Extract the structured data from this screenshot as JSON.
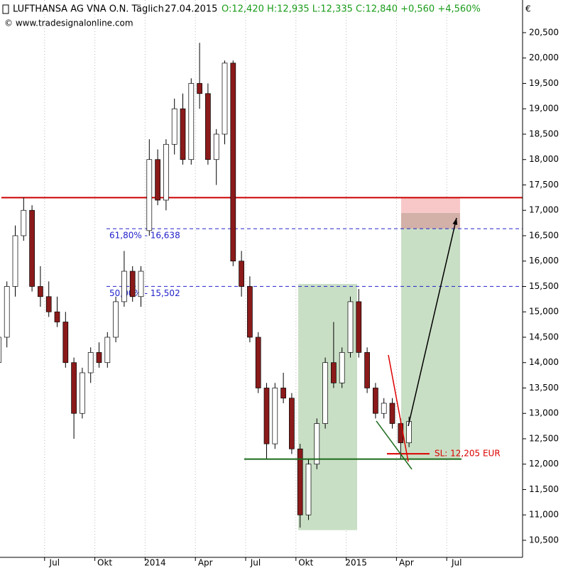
{
  "chart_data": {
    "type": "candlestick",
    "title": "LUFTHANSA AG VNA O.N. Täglich",
    "date": "27.04.2015",
    "quote": "O:12,420 H:12,935 L:12,335 C:12,840 +0,560 +4,560%",
    "source": "© www.tradesignalonline.com",
    "currency": "€",
    "categories": [
      null,
      null,
      null,
      null,
      null,
      null,
      "Jul",
      null,
      null,
      null,
      null,
      null,
      "Okt",
      null,
      null,
      null,
      null,
      null,
      "2014",
      null,
      null,
      null,
      null,
      null,
      "Apr",
      null,
      null,
      null,
      null,
      null,
      "Jul",
      null,
      null,
      null,
      null,
      null,
      "Okt",
      null,
      null,
      null,
      null,
      null,
      "2015",
      null,
      null,
      null,
      null,
      null,
      "Apr",
      null,
      null,
      null,
      null,
      null,
      "Jul",
      null,
      null,
      null,
      null,
      null,
      null,
      null,
      null
    ],
    "open": [
      14.0,
      14.5,
      15.5,
      16.5,
      17.0,
      15.5,
      15.3,
      15.0,
      14.8,
      14.0,
      13.0,
      13.8,
      14.2,
      14.0,
      14.5,
      15.2,
      15.8,
      15.3,
      16.6,
      18.0,
      17.2,
      18.3,
      19.0,
      18.0,
      19.5,
      19.3,
      18.0,
      18.5,
      19.9,
      16.0,
      15.5,
      14.5,
      13.5,
      12.4,
      13.5,
      13.3,
      12.3,
      11.0,
      12.0,
      12.8,
      14.0,
      13.6,
      14.2,
      15.2,
      14.2,
      13.5,
      13.0,
      13.2,
      12.8,
      12.42,
      null,
      null,
      null,
      null,
      null,
      null,
      null,
      null,
      null,
      null,
      null,
      null,
      null
    ],
    "high": [
      14.6,
      15.6,
      16.7,
      17.25,
      17.1,
      15.9,
      15.6,
      15.3,
      15.0,
      14.1,
      13.9,
      14.3,
      14.4,
      14.6,
      15.3,
      16.2,
      15.9,
      15.9,
      18.4,
      18.2,
      18.4,
      19.2,
      19.3,
      19.6,
      20.3,
      19.5,
      18.6,
      19.95,
      19.95,
      16.2,
      15.7,
      14.6,
      13.6,
      13.6,
      13.8,
      13.4,
      12.4,
      12.1,
      12.9,
      14.1,
      14.8,
      14.3,
      15.3,
      15.45,
      14.3,
      13.6,
      13.3,
      13.3,
      12.9,
      12.935,
      null,
      null,
      null,
      null,
      null,
      null,
      null,
      null,
      null,
      null,
      null,
      null,
      null
    ],
    "low": [
      13.8,
      14.3,
      15.3,
      16.4,
      15.4,
      15.1,
      14.9,
      14.7,
      13.9,
      12.5,
      12.9,
      13.6,
      13.9,
      13.9,
      14.4,
      15.1,
      15.2,
      15.1,
      16.5,
      17.1,
      17.0,
      18.1,
      17.9,
      17.9,
      19.0,
      17.9,
      17.5,
      18.3,
      15.9,
      15.3,
      14.4,
      13.4,
      12.1,
      12.3,
      13.2,
      12.2,
      10.75,
      10.9,
      11.9,
      12.7,
      13.5,
      13.5,
      14.1,
      14.1,
      13.4,
      12.9,
      12.9,
      12.7,
      12.1,
      12.335,
      null,
      null,
      null,
      null,
      null,
      null,
      null,
      null,
      null,
      null,
      null,
      null,
      null
    ],
    "close": [
      14.5,
      15.5,
      16.5,
      17.0,
      15.5,
      15.3,
      15.0,
      14.8,
      14.0,
      13.0,
      13.8,
      14.2,
      14.0,
      14.5,
      15.2,
      15.8,
      15.3,
      15.8,
      18.0,
      17.2,
      18.3,
      19.0,
      18.0,
      19.5,
      19.3,
      18.0,
      18.5,
      19.9,
      16.0,
      15.5,
      14.5,
      13.5,
      12.4,
      13.5,
      13.3,
      12.3,
      11.0,
      12.0,
      12.8,
      14.0,
      13.6,
      14.2,
      15.2,
      14.2,
      13.5,
      13.0,
      13.2,
      12.8,
      12.42,
      12.84,
      null,
      null,
      null,
      null,
      null,
      null,
      null,
      null,
      null,
      null,
      null,
      null,
      null
    ],
    "up_color": "#ffffff",
    "down_color": "#8b1a1a",
    "ylim": [
      10.164,
      21.143
    ],
    "yticks": [
      {
        "value": 10.5,
        "label": "10,500"
      },
      {
        "value": 11.0,
        "label": "11,000"
      },
      {
        "value": 11.5,
        "label": "11,500"
      },
      {
        "value": 12.0,
        "label": "12,000"
      },
      {
        "value": 12.5,
        "label": "12,500"
      },
      {
        "value": 13.0,
        "label": "13,000"
      },
      {
        "value": 13.5,
        "label": "13,500"
      },
      {
        "value": 14.0,
        "label": "14,000"
      },
      {
        "value": 14.5,
        "label": "14,500"
      },
      {
        "value": 15.0,
        "label": "15,000"
      },
      {
        "value": 15.5,
        "label": "15,500"
      },
      {
        "value": 16.0,
        "label": "16,000"
      },
      {
        "value": 16.5,
        "label": "16,500"
      },
      {
        "value": 17.0,
        "label": "17,000"
      },
      {
        "value": 17.5,
        "label": "17,500"
      },
      {
        "value": 18.0,
        "label": "18,000"
      },
      {
        "value": 18.5,
        "label": "18,500"
      },
      {
        "value": 19.0,
        "label": "19,000"
      },
      {
        "value": 19.5,
        "label": "19,500"
      },
      {
        "value": 20.0,
        "label": "20,000"
      },
      {
        "value": 20.5,
        "label": "20,500"
      }
    ],
    "resistance": 17.25,
    "fib_levels": [
      {
        "label": "61,80% - 16,638",
        "value": 16.638
      },
      {
        "label": "50,00% - 15,502",
        "value": 15.502
      }
    ],
    "support": 12.1,
    "stop_loss": {
      "label": "SL: 12,205 EUR",
      "value": 12.205
    },
    "zone": [
      10.7,
      15.55
    ],
    "target_zone": [
      12.1,
      16.64,
      16.95,
      17.25
    ],
    "arrow": [
      12.75,
      16.85
    ],
    "trend_red": [
      14.15,
      12.05
    ],
    "trend_green": [
      12.85,
      11.9
    ]
  }
}
